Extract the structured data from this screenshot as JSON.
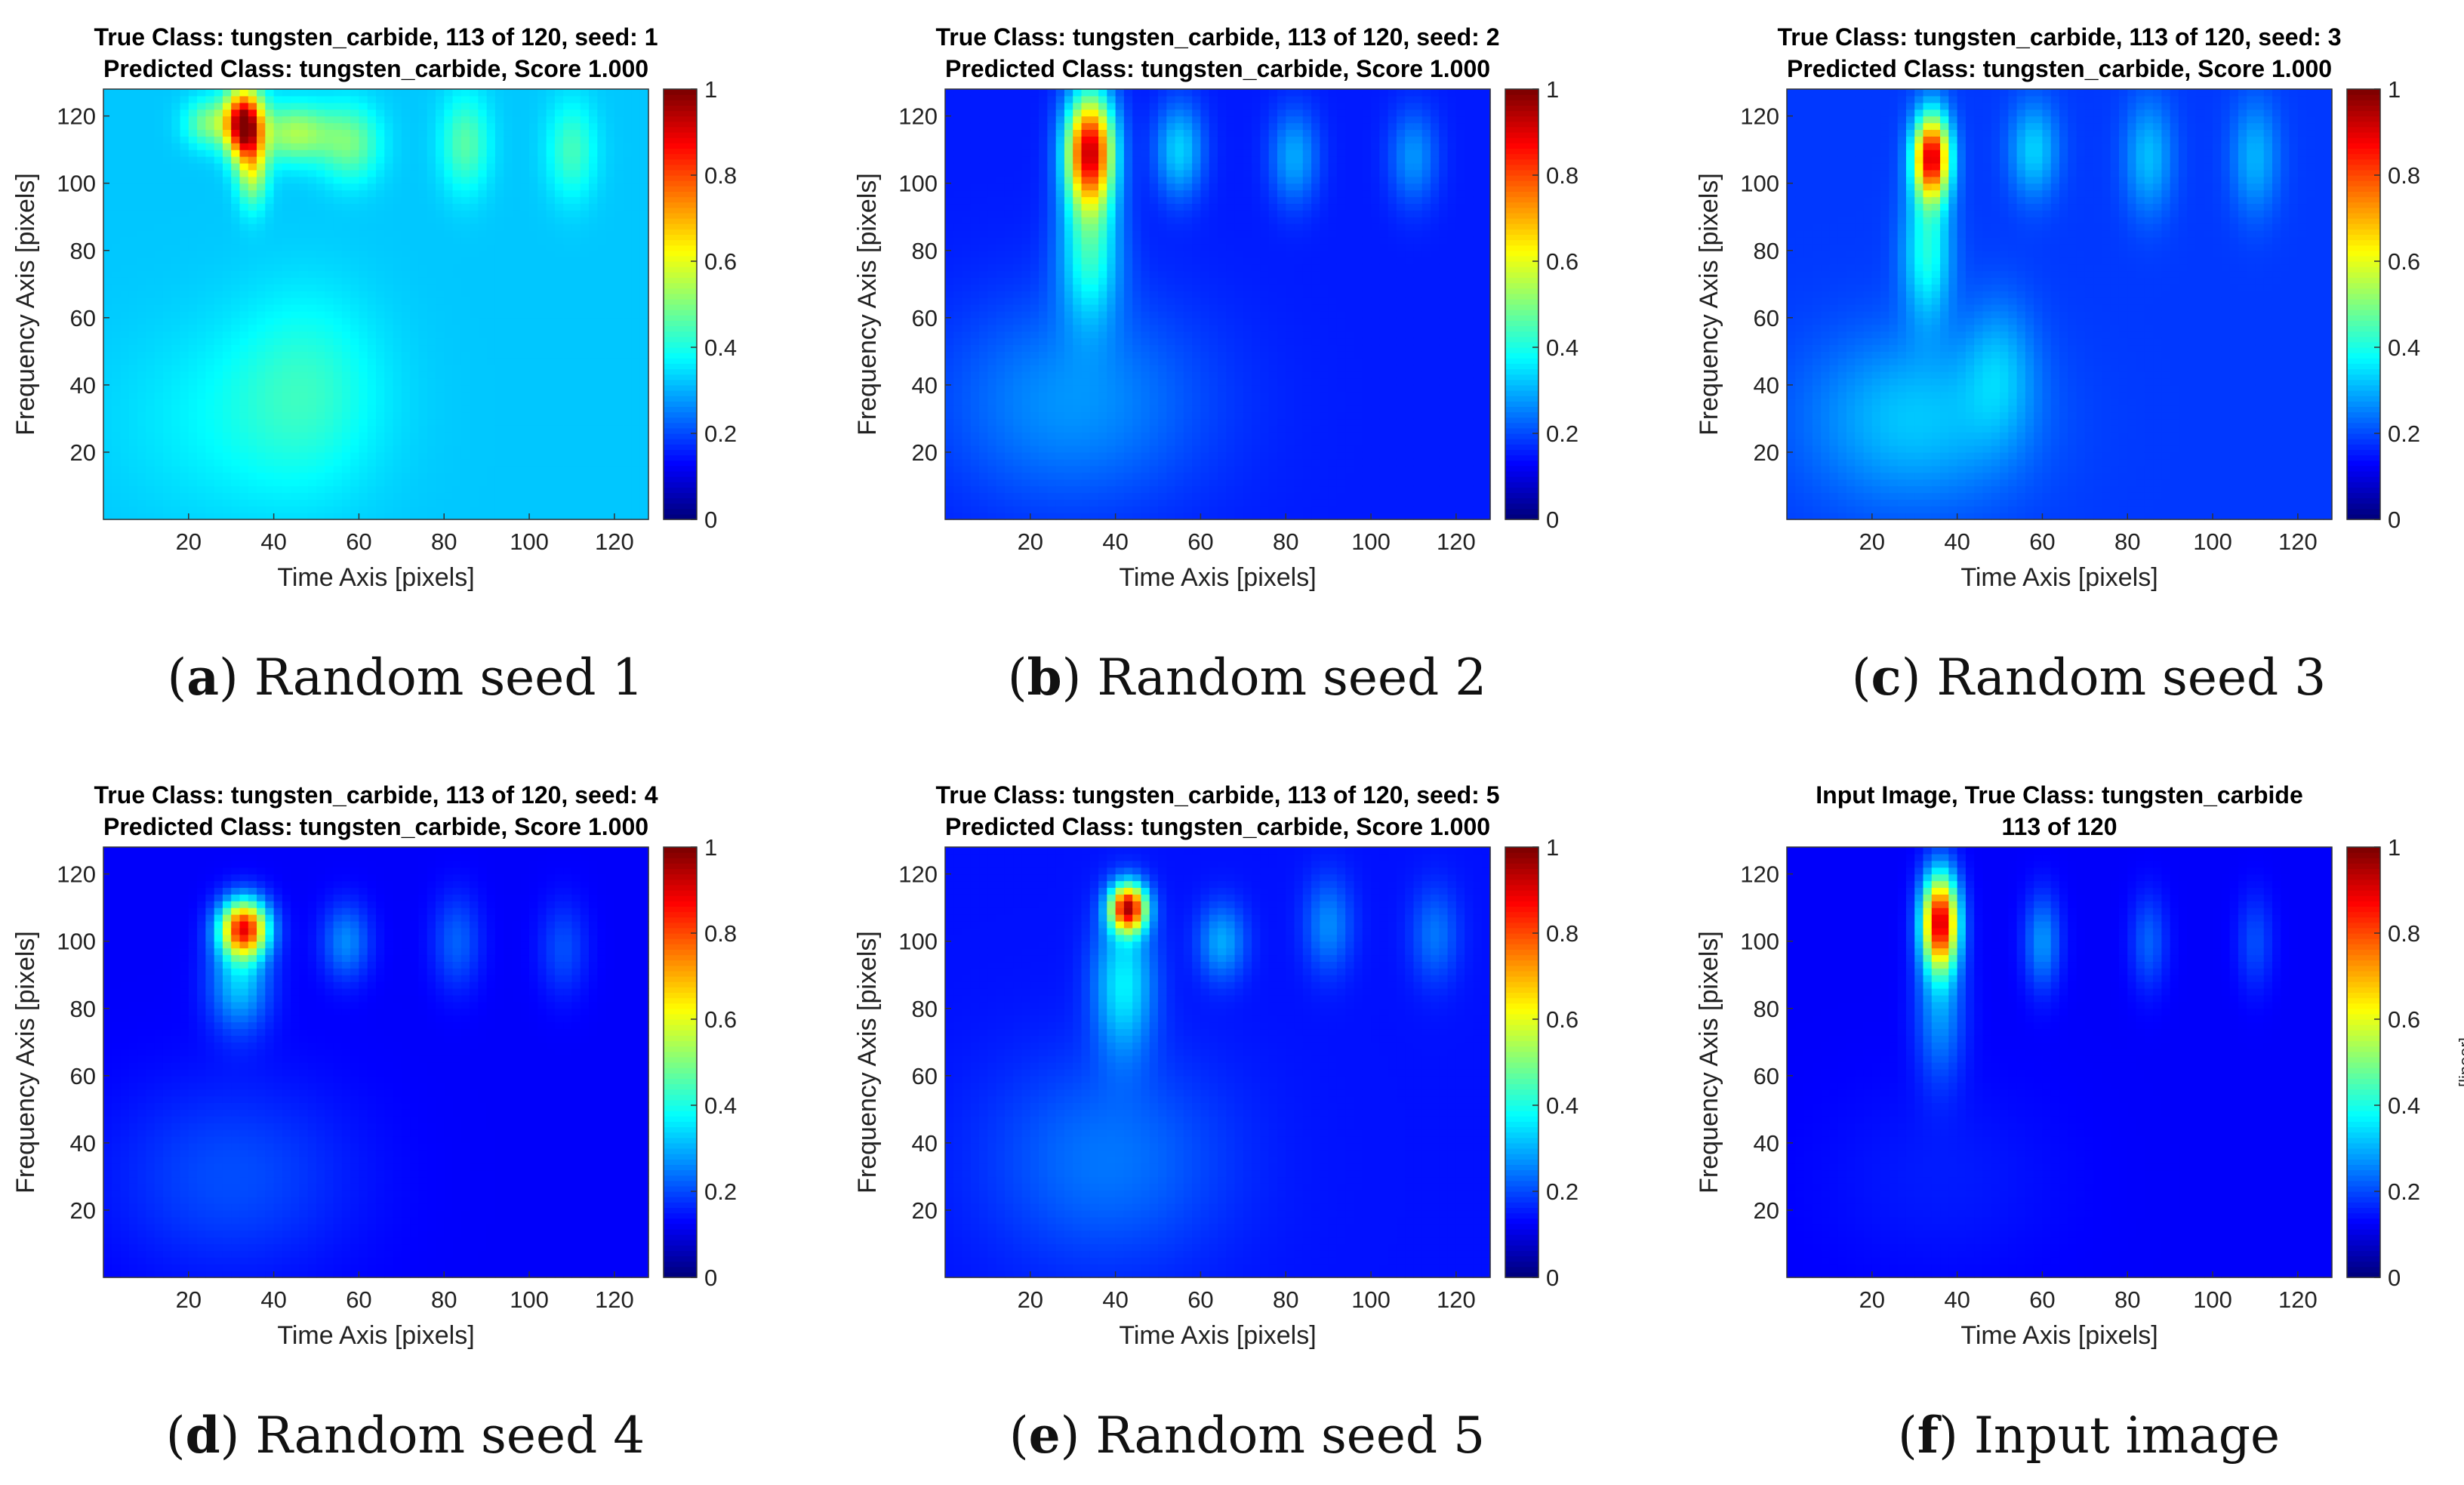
{
  "chart_data": [
    {
      "type": "heatmap",
      "title_lines": [
        "True Class: tungsten_carbide, 113 of 120, seed: 1",
        "Predicted Class: tungsten_carbide, Score 1.000"
      ],
      "xlabel": "Time Axis [pixels]",
      "ylabel": "Frequency Axis [pixels]",
      "xlim": [
        0,
        128
      ],
      "ylim": [
        0,
        128
      ],
      "xticks": [
        20,
        40,
        60,
        80,
        100,
        120
      ],
      "yticks": [
        20,
        40,
        60,
        80,
        100,
        120
      ],
      "colorbar": {
        "range": [
          0,
          1
        ],
        "ticks": [
          0,
          0.2,
          0.4,
          0.6,
          0.8,
          1
        ],
        "colormap": "jet",
        "label": ""
      },
      "caption_letter": "a",
      "caption_text": "Random seed 1",
      "background": 0.32,
      "blobs": [
        {
          "x": 33,
          "y": 118,
          "sx": 3,
          "sy": 7,
          "v": 0.65
        },
        {
          "x": 35,
          "y": 105,
          "sx": 2.5,
          "sy": 8,
          "v": 0.25
        },
        {
          "x": 25,
          "y": 118,
          "sx": 4,
          "sy": 5,
          "v": 0.18
        },
        {
          "x": 45,
          "y": 115,
          "sx": 6,
          "sy": 6,
          "v": 0.22
        },
        {
          "x": 58,
          "y": 112,
          "sx": 5,
          "sy": 8,
          "v": 0.16
        },
        {
          "x": 85,
          "y": 112,
          "sx": 4,
          "sy": 10,
          "v": 0.14
        },
        {
          "x": 110,
          "y": 110,
          "sx": 4,
          "sy": 10,
          "v": 0.12
        },
        {
          "x": 48,
          "y": 40,
          "sx": 12,
          "sy": 20,
          "v": 0.08
        },
        {
          "x": 32,
          "y": 30,
          "sx": 20,
          "sy": 20,
          "v": 0.05
        }
      ]
    },
    {
      "type": "heatmap",
      "title_lines": [
        "True Class: tungsten_carbide, 113 of 120, seed: 2",
        "Predicted Class: tungsten_carbide, Score 1.000"
      ],
      "xlabel": "Time Axis [pixels]",
      "ylabel": "Frequency Axis [pixels]",
      "xlim": [
        0,
        128
      ],
      "ylim": [
        0,
        128
      ],
      "xticks": [
        20,
        40,
        60,
        80,
        100,
        120
      ],
      "yticks": [
        20,
        40,
        60,
        80,
        100,
        120
      ],
      "colorbar": {
        "range": [
          0,
          1
        ],
        "ticks": [
          0,
          0.2,
          0.4,
          0.6,
          0.8,
          1
        ],
        "colormap": "jet",
        "label": ""
      },
      "caption_letter": "b",
      "caption_text": "Random seed 2",
      "background": 0.15,
      "blobs": [
        {
          "x": 34,
          "y": 110,
          "sx": 4,
          "sy": 12,
          "v": 0.75
        },
        {
          "x": 34,
          "y": 80,
          "sx": 5,
          "sy": 15,
          "v": 0.25
        },
        {
          "x": 30,
          "y": 35,
          "sx": 22,
          "sy": 22,
          "v": 0.12
        },
        {
          "x": 55,
          "y": 110,
          "sx": 4,
          "sy": 10,
          "v": 0.18
        },
        {
          "x": 82,
          "y": 108,
          "sx": 4,
          "sy": 10,
          "v": 0.14
        },
        {
          "x": 110,
          "y": 108,
          "sx": 4,
          "sy": 10,
          "v": 0.12
        }
      ]
    },
    {
      "type": "heatmap",
      "title_lines": [
        "True Class: tungsten_carbide, 113 of 120, seed: 3",
        "Predicted Class: tungsten_carbide, Score 1.000"
      ],
      "xlabel": "Time Axis [pixels]",
      "ylabel": "Frequency Axis [pixels]",
      "xlim": [
        0,
        128
      ],
      "ylim": [
        0,
        128
      ],
      "xticks": [
        20,
        40,
        60,
        80,
        100,
        120
      ],
      "yticks": [
        20,
        40,
        60,
        80,
        100,
        120
      ],
      "colorbar": {
        "range": [
          0,
          1
        ],
        "ticks": [
          0,
          0.2,
          0.4,
          0.6,
          0.8,
          1
        ],
        "colormap": "jet",
        "label": ""
      },
      "caption_letter": "c",
      "caption_text": "Random seed 3",
      "background": 0.18,
      "blobs": [
        {
          "x": 34,
          "y": 108,
          "sx": 3,
          "sy": 9,
          "v": 0.72
        },
        {
          "x": 33,
          "y": 80,
          "sx": 4,
          "sy": 14,
          "v": 0.22
        },
        {
          "x": 30,
          "y": 30,
          "sx": 18,
          "sy": 18,
          "v": 0.14
        },
        {
          "x": 50,
          "y": 45,
          "sx": 6,
          "sy": 15,
          "v": 0.1
        },
        {
          "x": 58,
          "y": 110,
          "sx": 4,
          "sy": 10,
          "v": 0.15
        },
        {
          "x": 85,
          "y": 108,
          "sx": 4,
          "sy": 12,
          "v": 0.13
        },
        {
          "x": 110,
          "y": 108,
          "sx": 4,
          "sy": 12,
          "v": 0.12
        }
      ]
    },
    {
      "type": "heatmap",
      "title_lines": [
        "True Class: tungsten_carbide, 113 of 120, seed: 4",
        "Predicted Class: tungsten_carbide, Score 1.000"
      ],
      "xlabel": "Time Axis [pixels]",
      "ylabel": "Frequency Axis [pixels]",
      "xlim": [
        0,
        128
      ],
      "ylim": [
        0,
        128
      ],
      "xticks": [
        20,
        40,
        60,
        80,
        100,
        120
      ],
      "yticks": [
        20,
        40,
        60,
        80,
        100,
        120
      ],
      "colorbar": {
        "range": [
          0,
          1
        ],
        "ticks": [
          0,
          0.2,
          0.4,
          0.6,
          0.8,
          1
        ],
        "colormap": "jet",
        "label": ""
      },
      "caption_letter": "d",
      "caption_text": "Random seed 4",
      "background": 0.12,
      "blobs": [
        {
          "x": 33,
          "y": 104,
          "sx": 4,
          "sy": 6,
          "v": 0.72
        },
        {
          "x": 32,
          "y": 88,
          "sx": 5,
          "sy": 10,
          "v": 0.2
        },
        {
          "x": 30,
          "y": 30,
          "sx": 20,
          "sy": 20,
          "v": 0.08
        },
        {
          "x": 57,
          "y": 100,
          "sx": 4,
          "sy": 8,
          "v": 0.14
        },
        {
          "x": 83,
          "y": 100,
          "sx": 4,
          "sy": 10,
          "v": 0.1
        },
        {
          "x": 108,
          "y": 98,
          "sx": 4,
          "sy": 10,
          "v": 0.08
        }
      ]
    },
    {
      "type": "heatmap",
      "title_lines": [
        "True Class: tungsten_carbide, 113 of 120, seed: 5",
        "Predicted Class: tungsten_carbide, Score 1.000"
      ],
      "xlabel": "Time Axis [pixels]",
      "ylabel": "Frequency Axis [pixels]",
      "xlim": [
        0,
        128
      ],
      "ylim": [
        0,
        128
      ],
      "xticks": [
        20,
        40,
        60,
        80,
        100,
        120
      ],
      "yticks": [
        20,
        40,
        60,
        80,
        100,
        120
      ],
      "colorbar": {
        "range": [
          0,
          1
        ],
        "ticks": [
          0,
          0.2,
          0.4,
          0.6,
          0.8,
          1
        ],
        "colormap": "jet",
        "label": ""
      },
      "caption_letter": "e",
      "caption_text": "Random seed 5",
      "background": 0.14,
      "blobs": [
        {
          "x": 43,
          "y": 110,
          "sx": 3,
          "sy": 5,
          "v": 0.75
        },
        {
          "x": 42,
          "y": 88,
          "sx": 5,
          "sy": 15,
          "v": 0.22
        },
        {
          "x": 38,
          "y": 35,
          "sx": 20,
          "sy": 22,
          "v": 0.1
        },
        {
          "x": 65,
          "y": 100,
          "sx": 4,
          "sy": 8,
          "v": 0.15
        },
        {
          "x": 90,
          "y": 105,
          "sx": 4,
          "sy": 10,
          "v": 0.12
        },
        {
          "x": 115,
          "y": 102,
          "sx": 4,
          "sy": 10,
          "v": 0.1
        }
      ]
    },
    {
      "type": "heatmap",
      "title_lines": [
        "Input Image, True Class: tungsten_carbide",
        "113 of 120"
      ],
      "xlabel": "Time Axis [pixels]",
      "ylabel": "Frequency Axis [pixels]",
      "xlim": [
        0,
        128
      ],
      "ylim": [
        0,
        128
      ],
      "xticks": [
        20,
        40,
        60,
        80,
        100,
        120
      ],
      "yticks": [
        20,
        40,
        60,
        80,
        100,
        120
      ],
      "colorbar": {
        "range": [
          0,
          1
        ],
        "ticks": [
          0,
          0.2,
          0.4,
          0.6,
          0.8,
          1
        ],
        "colormap": "jet",
        "label": "[linear]"
      },
      "caption_letter": "f",
      "caption_text": "Input image",
      "background": 0.12,
      "blobs": [
        {
          "x": 36,
          "y": 106,
          "sx": 3,
          "sy": 10,
          "v": 0.78
        },
        {
          "x": 36,
          "y": 80,
          "sx": 4,
          "sy": 15,
          "v": 0.15
        },
        {
          "x": 60,
          "y": 100,
          "sx": 3,
          "sy": 10,
          "v": 0.15
        },
        {
          "x": 85,
          "y": 100,
          "sx": 3,
          "sy": 10,
          "v": 0.1
        },
        {
          "x": 110,
          "y": 100,
          "sx": 3,
          "sy": 10,
          "v": 0.08
        },
        {
          "x": 36,
          "y": 30,
          "sx": 20,
          "sy": 20,
          "v": 0.03
        }
      ]
    }
  ]
}
